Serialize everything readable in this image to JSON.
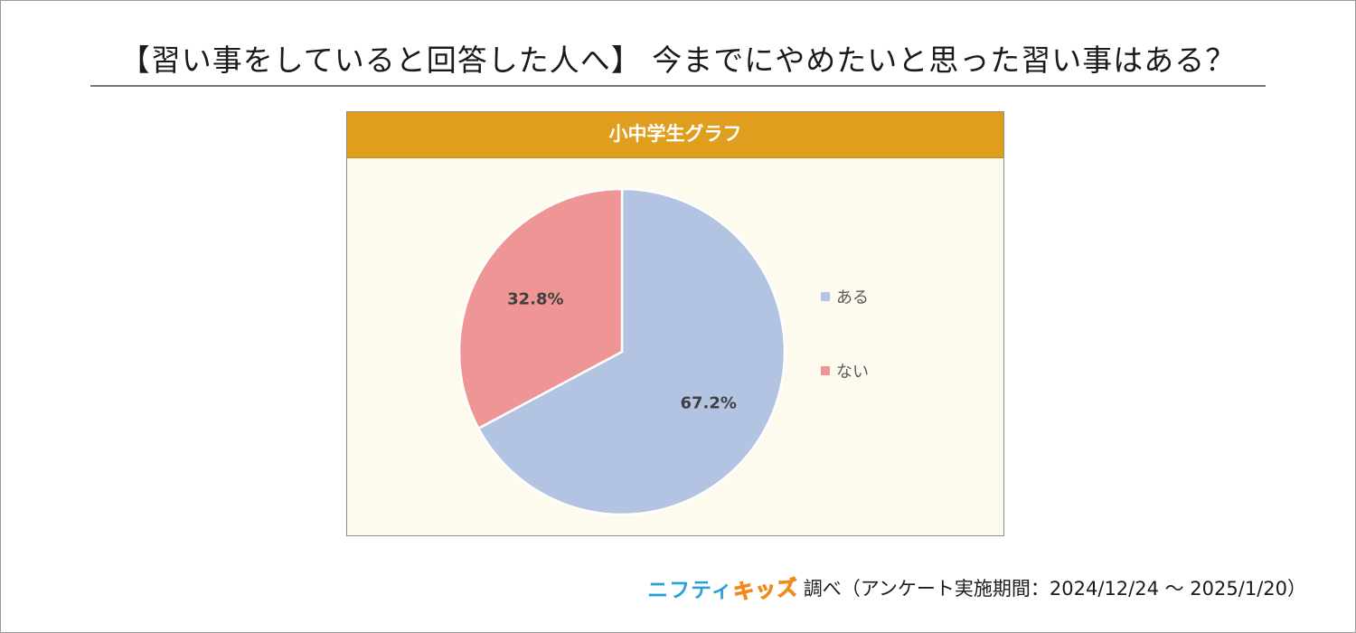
{
  "title": "【習い事をしていると回答した人へ】 今までにやめたいと思った習い事はある？",
  "chart_data": {
    "type": "pie",
    "title": "小中学生グラフ",
    "categories": [
      "ある",
      "ない"
    ],
    "values": [
      67.2,
      32.8
    ],
    "value_labels": [
      "67.2%",
      "32.8%"
    ],
    "colors": [
      "#b3c4e2",
      "#f09595"
    ],
    "legend_position": "right",
    "start_angle": "12 o'clock, clockwise"
  },
  "footer": {
    "brand_part1": "ニフティ",
    "brand_part2": "キッズ",
    "credit": "調べ（アンケート実施期間：2024/12/24 ～ 2025/1/20）"
  }
}
